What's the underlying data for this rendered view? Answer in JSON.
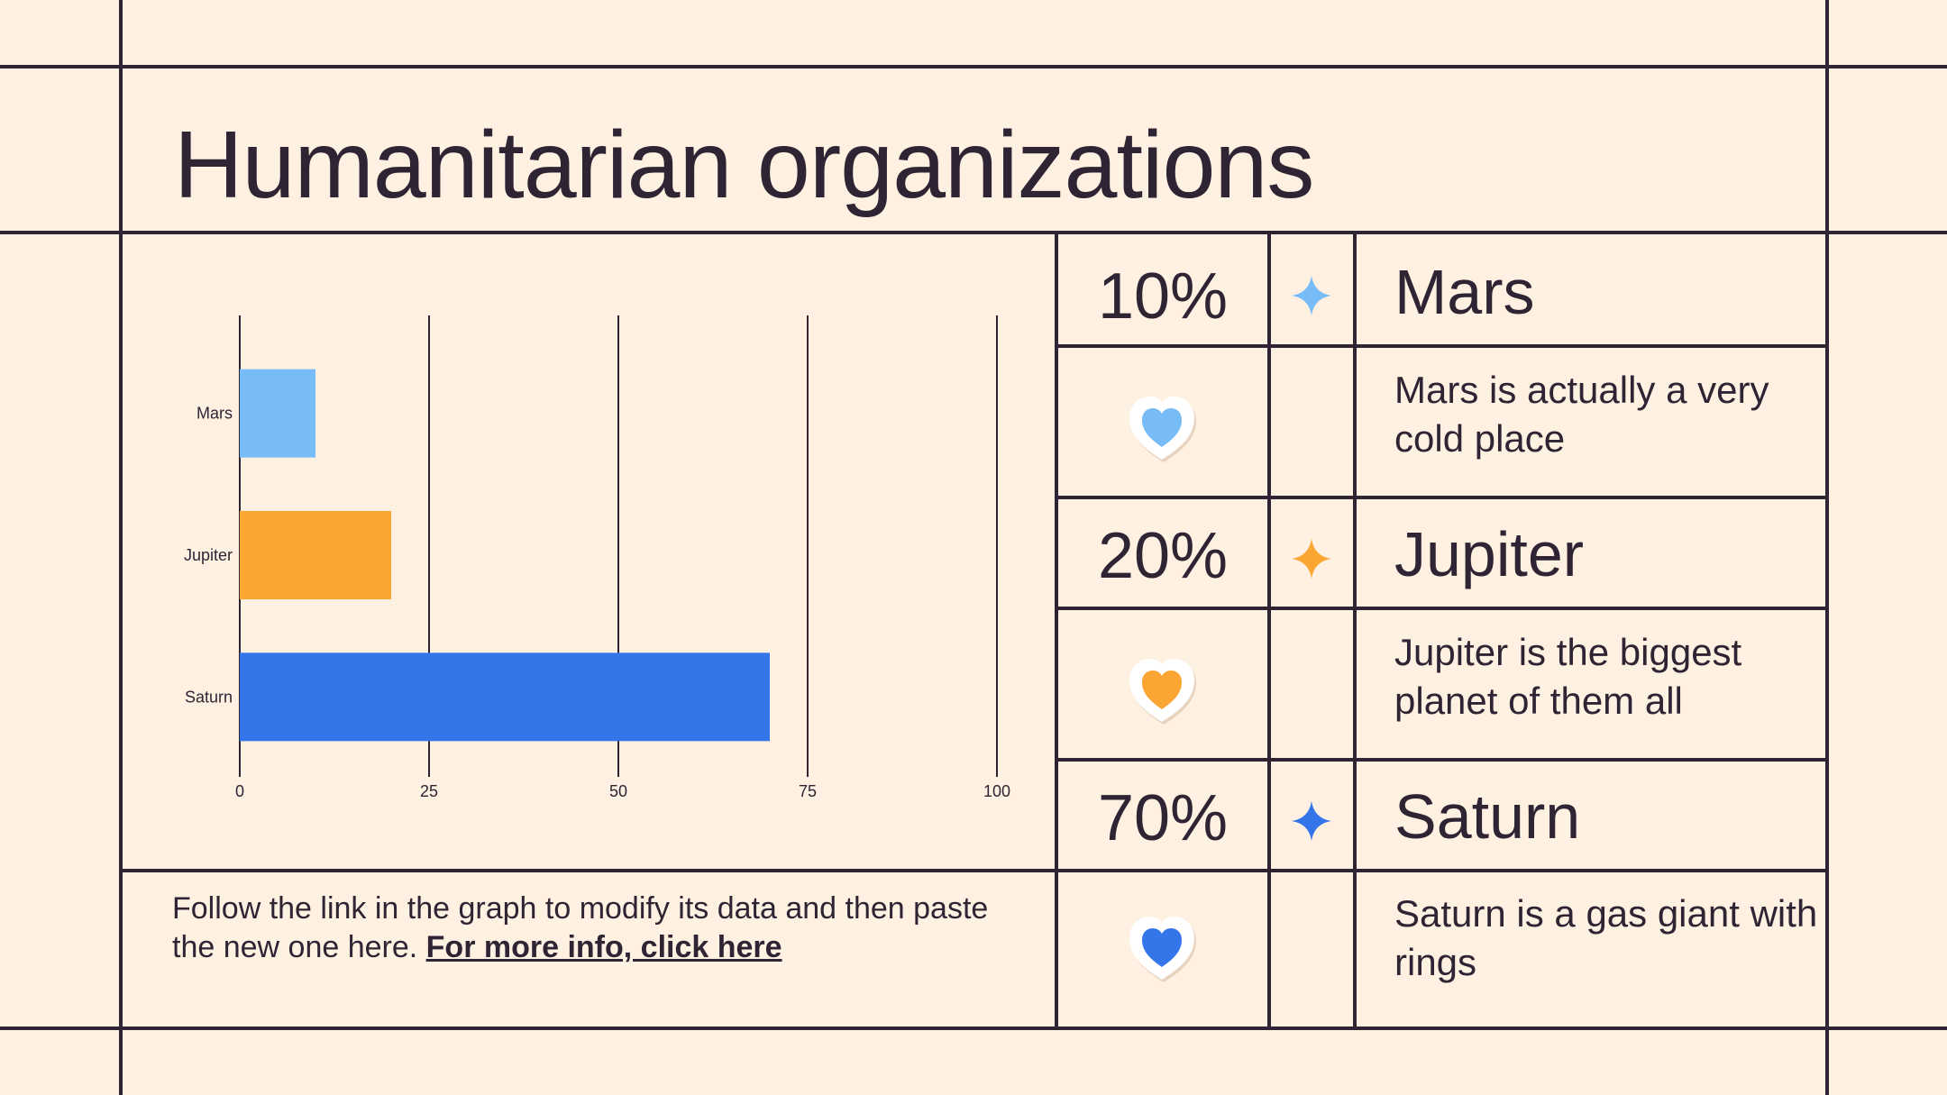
{
  "title": "Humanitarian organizations",
  "caption": {
    "text": "Follow the link in the graph to modify its data and then paste the new one here. ",
    "link": "For more info, click here"
  },
  "colors": {
    "background": "#fef1e2",
    "ink": "#2f2433",
    "mars": "#78bcf7",
    "jupiter": "#fba533",
    "saturn": "#3575ea"
  },
  "planets": [
    {
      "percent": "10%",
      "name": "Mars",
      "description": "Mars is actually a very cold place",
      "color": "#78bcf7",
      "star_icon": "sparkle-star-icon",
      "heart_icon": "heart-sticker-icon"
    },
    {
      "percent": "20%",
      "name": "Jupiter",
      "description": "Jupiter is the biggest planet of them all",
      "color": "#fba533",
      "star_icon": "sparkle-star-icon",
      "heart_icon": "heart-sticker-icon"
    },
    {
      "percent": "70%",
      "name": "Saturn",
      "description": "Saturn is a gas giant with rings",
      "color": "#3575ea",
      "star_icon": "sparkle-star-icon",
      "heart_icon": "heart-sticker-icon"
    }
  ],
  "chart_data": {
    "type": "bar",
    "orientation": "horizontal",
    "categories": [
      "Mars",
      "Jupiter",
      "Saturn"
    ],
    "values": [
      10,
      20,
      70
    ],
    "colors": [
      "#78bcf7",
      "#fba533",
      "#3575ea"
    ],
    "xlim": [
      0,
      100
    ],
    "xticks": [
      0,
      25,
      50,
      75,
      100
    ],
    "grid": true,
    "legend": "none"
  }
}
